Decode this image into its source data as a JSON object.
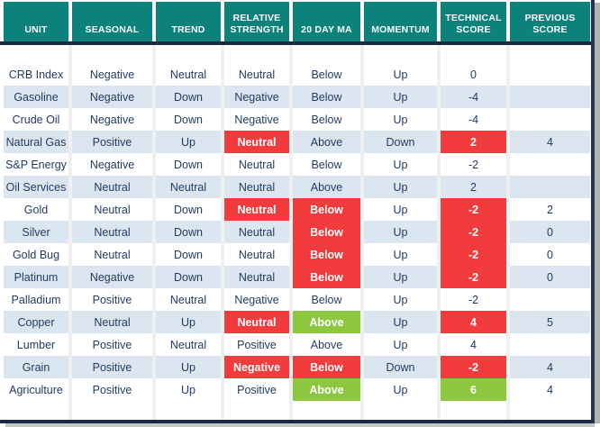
{
  "colors": {
    "header_teal": "#0c827b",
    "highlight_red": "#f23b3d",
    "highlight_green": "#8dc63f",
    "text_navy": "#1f3a5f",
    "row_stripe_blue": "#dce6f1",
    "frame_navy": "#1b2a41"
  },
  "chart_data": {
    "type": "table",
    "columns": [
      "UNIT",
      "SEASONAL",
      "TREND",
      "RELATIVE STRENGTH",
      "20 DAY MA",
      "MOMENTUM",
      "TECHNICAL SCORE",
      "PREVIOUS SCORE"
    ],
    "highlight_legend": "red = negative alert cell, green = positive alert cell",
    "rows": [
      {
        "cells": [
          {
            "t": "CRB Index"
          },
          {
            "t": "Negative"
          },
          {
            "t": "Neutral"
          },
          {
            "t": "Neutral"
          },
          {
            "t": "Below"
          },
          {
            "t": "Up"
          },
          {
            "t": "0"
          },
          {
            "t": ""
          }
        ]
      },
      {
        "cells": [
          {
            "t": "Gasoline"
          },
          {
            "t": "Negative"
          },
          {
            "t": "Down"
          },
          {
            "t": "Negative"
          },
          {
            "t": "Below"
          },
          {
            "t": "Up"
          },
          {
            "t": "-4"
          },
          {
            "t": ""
          }
        ]
      },
      {
        "cells": [
          {
            "t": "Crude Oil"
          },
          {
            "t": "Negative"
          },
          {
            "t": "Down"
          },
          {
            "t": "Negative"
          },
          {
            "t": "Below"
          },
          {
            "t": "Up"
          },
          {
            "t": "-4"
          },
          {
            "t": ""
          }
        ]
      },
      {
        "cells": [
          {
            "t": "Natural Gas"
          },
          {
            "t": "Positive"
          },
          {
            "t": "Up"
          },
          {
            "t": "Neutral",
            "h": "red"
          },
          {
            "t": "Above"
          },
          {
            "t": "Down"
          },
          {
            "t": "2",
            "h": "red"
          },
          {
            "t": "4"
          }
        ]
      },
      {
        "cells": [
          {
            "t": "S&P Energy"
          },
          {
            "t": "Negative"
          },
          {
            "t": "Down"
          },
          {
            "t": "Neutral"
          },
          {
            "t": "Below"
          },
          {
            "t": "Up"
          },
          {
            "t": "-2"
          },
          {
            "t": ""
          }
        ]
      },
      {
        "cells": [
          {
            "t": "Oil Services"
          },
          {
            "t": "Neutral"
          },
          {
            "t": "Neutral"
          },
          {
            "t": "Neutral"
          },
          {
            "t": "Above"
          },
          {
            "t": "Up"
          },
          {
            "t": "2"
          },
          {
            "t": ""
          }
        ]
      },
      {
        "cells": [
          {
            "t": "Gold"
          },
          {
            "t": "Neutral"
          },
          {
            "t": "Down"
          },
          {
            "t": "Neutral",
            "h": "red"
          },
          {
            "t": "Below",
            "h": "red"
          },
          {
            "t": "Up"
          },
          {
            "t": "-2",
            "h": "red"
          },
          {
            "t": "2"
          }
        ]
      },
      {
        "cells": [
          {
            "t": "Silver"
          },
          {
            "t": "Neutral"
          },
          {
            "t": "Down"
          },
          {
            "t": "Neutral"
          },
          {
            "t": "Below",
            "h": "red"
          },
          {
            "t": "Up"
          },
          {
            "t": "-2",
            "h": "red"
          },
          {
            "t": "0"
          }
        ]
      },
      {
        "cells": [
          {
            "t": "Gold Bug"
          },
          {
            "t": "Neutral"
          },
          {
            "t": "Down"
          },
          {
            "t": "Neutral"
          },
          {
            "t": "Below",
            "h": "red"
          },
          {
            "t": "Up"
          },
          {
            "t": "-2",
            "h": "red"
          },
          {
            "t": "0"
          }
        ]
      },
      {
        "cells": [
          {
            "t": "Platinum"
          },
          {
            "t": "Negative"
          },
          {
            "t": "Down"
          },
          {
            "t": "Neutral"
          },
          {
            "t": "Below",
            "h": "red"
          },
          {
            "t": "Up"
          },
          {
            "t": "-2",
            "h": "red"
          },
          {
            "t": "0"
          }
        ]
      },
      {
        "cells": [
          {
            "t": "Palladium"
          },
          {
            "t": "Positive"
          },
          {
            "t": "Neutral"
          },
          {
            "t": "Negative"
          },
          {
            "t": "Below"
          },
          {
            "t": "Up"
          },
          {
            "t": "-2"
          },
          {
            "t": ""
          }
        ]
      },
      {
        "cells": [
          {
            "t": "Copper"
          },
          {
            "t": "Neutral"
          },
          {
            "t": "Up"
          },
          {
            "t": "Neutral",
            "h": "red"
          },
          {
            "t": "Above",
            "h": "green"
          },
          {
            "t": "Up"
          },
          {
            "t": "4",
            "h": "red"
          },
          {
            "t": "5"
          }
        ]
      },
      {
        "cells": [
          {
            "t": "Lumber"
          },
          {
            "t": "Positive"
          },
          {
            "t": "Neutral"
          },
          {
            "t": "Positive"
          },
          {
            "t": "Above"
          },
          {
            "t": "Up"
          },
          {
            "t": "4"
          },
          {
            "t": ""
          }
        ]
      },
      {
        "cells": [
          {
            "t": "Grain"
          },
          {
            "t": "Positive"
          },
          {
            "t": "Up"
          },
          {
            "t": "Negative",
            "h": "red"
          },
          {
            "t": "Below",
            "h": "red"
          },
          {
            "t": "Down"
          },
          {
            "t": "-2",
            "h": "red"
          },
          {
            "t": "4"
          }
        ]
      },
      {
        "cells": [
          {
            "t": "Agriculture"
          },
          {
            "t": "Positive"
          },
          {
            "t": "Up"
          },
          {
            "t": "Positive"
          },
          {
            "t": "Above",
            "h": "green"
          },
          {
            "t": "Up"
          },
          {
            "t": "6",
            "h": "green"
          },
          {
            "t": "4"
          }
        ]
      }
    ]
  }
}
